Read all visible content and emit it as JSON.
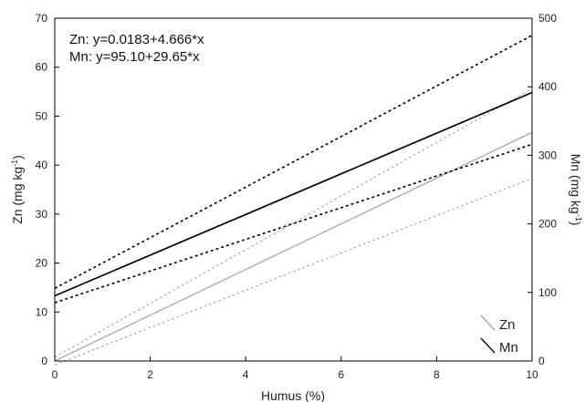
{
  "chart_data": {
    "type": "line",
    "x": [
      0,
      10
    ],
    "xlabel": "Humus (%)",
    "ylabel_left": "Zn (mg kg",
    "ylabel_left_sup": "-1",
    "ylabel_left_close": ")",
    "ylabel_right": "Mn (mg kg",
    "ylabel_right_sup": "-1",
    "ylabel_right_close": ")",
    "xlim": [
      0,
      10
    ],
    "ylim_left": [
      0,
      70
    ],
    "ylim_right": [
      0,
      500
    ],
    "xticks": [
      "0",
      "2",
      "4",
      "6",
      "8",
      "10"
    ],
    "yticks_left": [
      "0",
      "10",
      "20",
      "30",
      "40",
      "50",
      "60",
      "70"
    ],
    "yticks_right": [
      "0",
      "100",
      "200",
      "300",
      "400",
      "500"
    ],
    "grid": false,
    "legend_position": "bottom-right",
    "annotations": [
      "Zn: y=0.0183+4.666*x",
      "Mn: y=95.10+29.65*x"
    ],
    "series": [
      {
        "name": "Zn",
        "axis": "left",
        "intercept": 0.0183,
        "slope": 4.666,
        "color": "#a6a6a6",
        "ci_lower": [
          -0.8,
          37.3
        ],
        "ci_upper": [
          0.8,
          55.6
        ]
      },
      {
        "name": "Mn",
        "axis": "right",
        "intercept": 95.1,
        "slope": 29.65,
        "color": "#000000",
        "ci_lower": [
          85.0,
          316.0
        ],
        "ci_upper": [
          106.0,
          475.0
        ]
      }
    ]
  }
}
